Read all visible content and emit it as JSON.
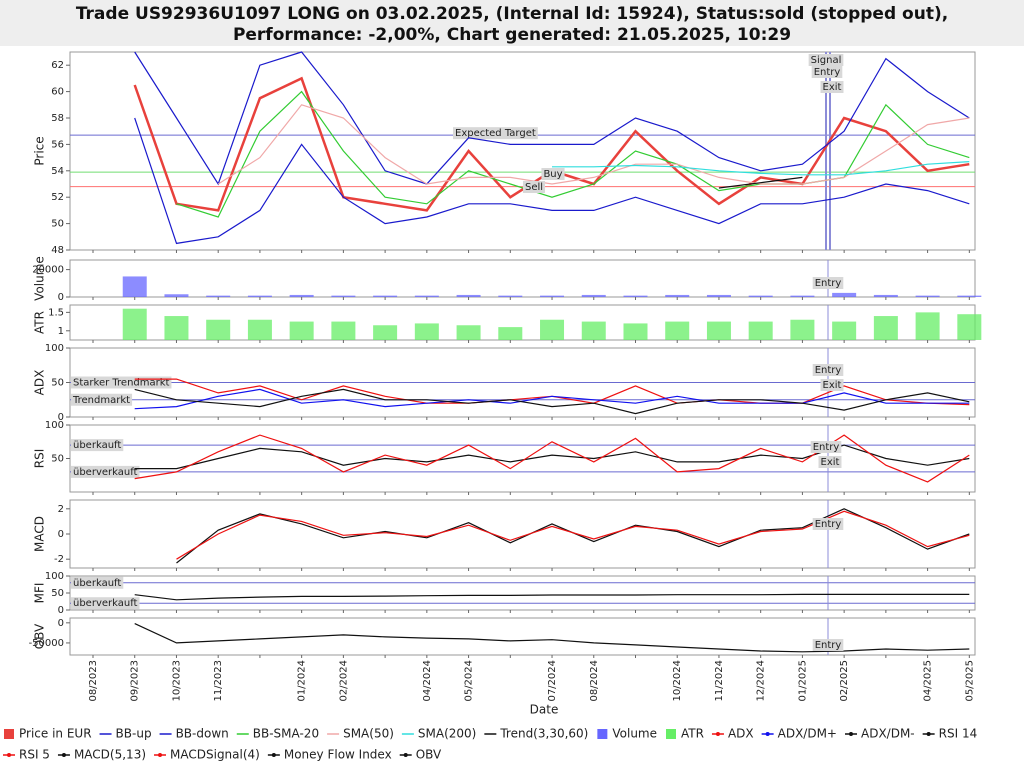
{
  "chart_data": [
    {
      "type": "line",
      "title": [
        "Trade US92936U1097 LONG on 03.02.2025, (Internal Id: 15924), Status:sold (stopped out),",
        "Performance: -2,00%, Chart generated: 21.05.2025, 10:29"
      ],
      "y_label": "Price",
      "ylim": [
        48,
        63
      ],
      "yticks": [
        48,
        50,
        52,
        54,
        56,
        58,
        60,
        62
      ],
      "reference_lines": [
        {
          "value": 56.7,
          "label": "Expected Target",
          "color": "#6a6ad0"
        },
        {
          "value": 52.8,
          "color": "#ff7070"
        },
        {
          "value": 53.9,
          "color": "#70dd70"
        }
      ],
      "annotations": [
        "Buy",
        "Sell",
        "Signal",
        "Entry",
        "Exit"
      ],
      "series": [
        {
          "name": "Price in EUR",
          "color": "#e8413c",
          "values": [
            null,
            60.5,
            51.5,
            51,
            59.5,
            61,
            52,
            51.5,
            51,
            55.5,
            52,
            54,
            53,
            57,
            54,
            51.5,
            53.5,
            53,
            58,
            57,
            54,
            54.5
          ]
        },
        {
          "name": "BB-up",
          "color": "#1a1acc",
          "values": [
            null,
            63,
            58,
            53,
            62,
            63,
            59,
            54,
            53,
            56.5,
            56,
            56,
            56,
            58,
            57,
            55,
            54,
            54.5,
            57,
            62.5,
            60,
            58
          ]
        },
        {
          "name": "BB-down",
          "color": "#1a1acc",
          "values": [
            null,
            58,
            48.5,
            49,
            51,
            56,
            52,
            50,
            50.5,
            51.5,
            51.5,
            51,
            51,
            52,
            51,
            50,
            51.5,
            51.5,
            52,
            53,
            52.5,
            51.5
          ]
        },
        {
          "name": "BB-SMA-20",
          "color": "#33cc33",
          "values": [
            null,
            null,
            51.5,
            50.5,
            57,
            60,
            55.5,
            52,
            51.5,
            54,
            53,
            52,
            53,
            55.5,
            54.5,
            52.5,
            53,
            53,
            53.5,
            59,
            56,
            55
          ]
        },
        {
          "name": "SMA(50)",
          "color": "#f0a8a8",
          "values": [
            null,
            null,
            null,
            53,
            55,
            59,
            58,
            55,
            53,
            53.5,
            53.5,
            53,
            53.5,
            54.5,
            54.5,
            53.5,
            53,
            53,
            53.5,
            55.5,
            57.5,
            58
          ]
        },
        {
          "name": "SMA(200)",
          "color": "#30dede",
          "values": [
            null,
            null,
            null,
            null,
            null,
            null,
            null,
            null,
            null,
            null,
            null,
            54.3,
            54.3,
            54.4,
            54.3,
            54,
            53.8,
            53.7,
            53.7,
            54,
            54.5,
            54.7
          ]
        },
        {
          "name": "Trend(3,30,60)",
          "color": "#111111",
          "values": [
            null,
            null,
            null,
            null,
            null,
            null,
            null,
            null,
            null,
            null,
            null,
            null,
            null,
            null,
            null,
            52.7,
            53.1,
            53.5,
            null,
            null,
            null,
            null
          ]
        }
      ]
    },
    {
      "type": "bar",
      "y_label": "Volume",
      "ylim": [
        0,
        27000
      ],
      "yticks": [
        0,
        20000
      ],
      "annotations": [
        "Entry"
      ],
      "series": [
        {
          "name": "Volume",
          "color": "#6666ff",
          "values": [
            null,
            15000,
            2000,
            1000,
            1000,
            1500,
            1000,
            1000,
            1000,
            1500,
            1000,
            1000,
            1500,
            1000,
            1500,
            1500,
            1000,
            1000,
            3000,
            1500,
            1000,
            1000
          ]
        }
      ]
    },
    {
      "type": "bar",
      "y_label": "ATR",
      "ylim": [
        0.75,
        1.7
      ],
      "yticks": [
        1,
        1.5
      ],
      "series": [
        {
          "name": "ATR",
          "color": "#66ee66",
          "values": [
            null,
            1.6,
            1.4,
            1.3,
            1.3,
            1.25,
            1.25,
            1.15,
            1.2,
            1.15,
            1.1,
            1.3,
            1.25,
            1.2,
            1.25,
            1.25,
            1.25,
            1.3,
            1.25,
            1.4,
            1.5,
            1.45
          ]
        }
      ]
    },
    {
      "type": "line",
      "y_label": "ADX",
      "ylim": [
        0,
        100
      ],
      "yticks": [
        0,
        50,
        100
      ],
      "reference_lines": [
        {
          "value": 50,
          "label": "Starker Trendmarkt",
          "color": "#6a6ad0"
        },
        {
          "value": 25,
          "label": "Trendmarkt",
          "color": "#6a6ad0"
        }
      ],
      "annotations": [
        "Entry",
        "Exit"
      ],
      "series": [
        {
          "name": "ADX",
          "color": "#ee1111",
          "values": [
            null,
            55,
            55,
            35,
            45,
            25,
            45,
            30,
            20,
            20,
            25,
            30,
            20,
            45,
            20,
            25,
            20,
            20,
            45,
            25,
            20,
            18
          ]
        },
        {
          "name": "ADX/DM+",
          "color": "#1111ee",
          "values": [
            null,
            12,
            15,
            30,
            40,
            20,
            25,
            15,
            20,
            25,
            20,
            30,
            25,
            20,
            30,
            20,
            20,
            20,
            35,
            20,
            20,
            20
          ]
        },
        {
          "name": "ADX/DM-",
          "color": "#111111",
          "values": [
            null,
            40,
            25,
            20,
            15,
            30,
            40,
            25,
            25,
            20,
            25,
            15,
            20,
            5,
            20,
            25,
            25,
            20,
            10,
            25,
            35,
            22
          ]
        }
      ]
    },
    {
      "type": "line",
      "y_label": "RSI",
      "ylim": [
        0,
        100
      ],
      "yticks": [
        50,
        100
      ],
      "reference_lines": [
        {
          "value": 70,
          "label": "überkauft",
          "color": "#6a6ad0"
        },
        {
          "value": 30,
          "label": "überverkauft",
          "color": "#6a6ad0"
        }
      ],
      "annotations": [
        "Entry",
        "Exit"
      ],
      "series": [
        {
          "name": "RSI 14",
          "color": "#111111",
          "values": [
            null,
            35,
            35,
            50,
            65,
            60,
            40,
            50,
            45,
            55,
            45,
            55,
            50,
            60,
            45,
            45,
            55,
            50,
            70,
            50,
            40,
            50
          ]
        },
        {
          "name": "RSI 5",
          "color": "#ee1111",
          "values": [
            null,
            20,
            30,
            60,
            85,
            65,
            30,
            55,
            40,
            70,
            35,
            75,
            45,
            80,
            30,
            35,
            65,
            45,
            85,
            40,
            15,
            55
          ]
        }
      ]
    },
    {
      "type": "line",
      "y_label": "MACD",
      "ylim": [
        -2.7,
        2.7
      ],
      "yticks": [
        -2,
        0,
        2
      ],
      "annotations": [
        "Entry"
      ],
      "series": [
        {
          "name": "MACD(5,13)",
          "color": "#111111",
          "values": [
            null,
            null,
            -2.3,
            0.3,
            1.6,
            0.8,
            -0.3,
            0.2,
            -0.3,
            0.9,
            -0.7,
            0.8,
            -0.6,
            0.7,
            0.2,
            -1,
            0.3,
            0.5,
            2,
            0.5,
            -1.2,
            0
          ]
        },
        {
          "name": "MACDSignal(4)",
          "color": "#ee1111",
          "values": [
            null,
            null,
            -2,
            0,
            1.5,
            1,
            -0.1,
            0.1,
            -0.2,
            0.7,
            -0.5,
            0.6,
            -0.4,
            0.6,
            0.3,
            -0.8,
            0.2,
            0.4,
            1.8,
            0.7,
            -1,
            -0.1
          ]
        }
      ]
    },
    {
      "type": "line",
      "y_label": "MFI",
      "ylim": [
        0,
        100
      ],
      "yticks": [
        0,
        50,
        100
      ],
      "reference_lines": [
        {
          "value": 80,
          "label": "überkauft",
          "color": "#6a6ad0"
        },
        {
          "value": 20,
          "label": "überverkauft",
          "color": "#6a6ad0"
        }
      ],
      "series": [
        {
          "name": "Money Flow Index",
          "color": "#111111",
          "values": [
            null,
            45,
            30,
            35,
            38,
            40,
            40,
            41,
            42,
            43,
            43,
            44,
            44,
            44,
            45,
            45,
            45,
            46,
            46,
            46,
            46,
            46
          ]
        }
      ]
    },
    {
      "type": "line",
      "y_label": "OBV",
      "ylim": [
        -80000,
        12000
      ],
      "yticks": [
        -50000,
        0
      ],
      "annotations": [
        "Entry"
      ],
      "x_label": "Date",
      "categories": [
        "08/2023",
        "09/2023",
        "10/2023",
        "11/2023",
        null,
        "01/2024",
        "02/2024",
        null,
        "04/2024",
        "05/2024",
        null,
        "07/2024",
        "08/2024",
        null,
        "10/2024",
        "11/2024",
        "12/2024",
        "01/2025",
        "02/2025",
        null,
        "04/2025",
        "05/2025"
      ],
      "series": [
        {
          "name": "OBV",
          "color": "#111111",
          "values": [
            null,
            -2000,
            -50000,
            -45000,
            -40000,
            -35000,
            -30000,
            -35000,
            -38000,
            -40000,
            -45000,
            -42000,
            -50000,
            -55000,
            -60000,
            -65000,
            -70000,
            -72000,
            -70000,
            -65000,
            -68000,
            -65000
          ]
        }
      ]
    }
  ]
}
